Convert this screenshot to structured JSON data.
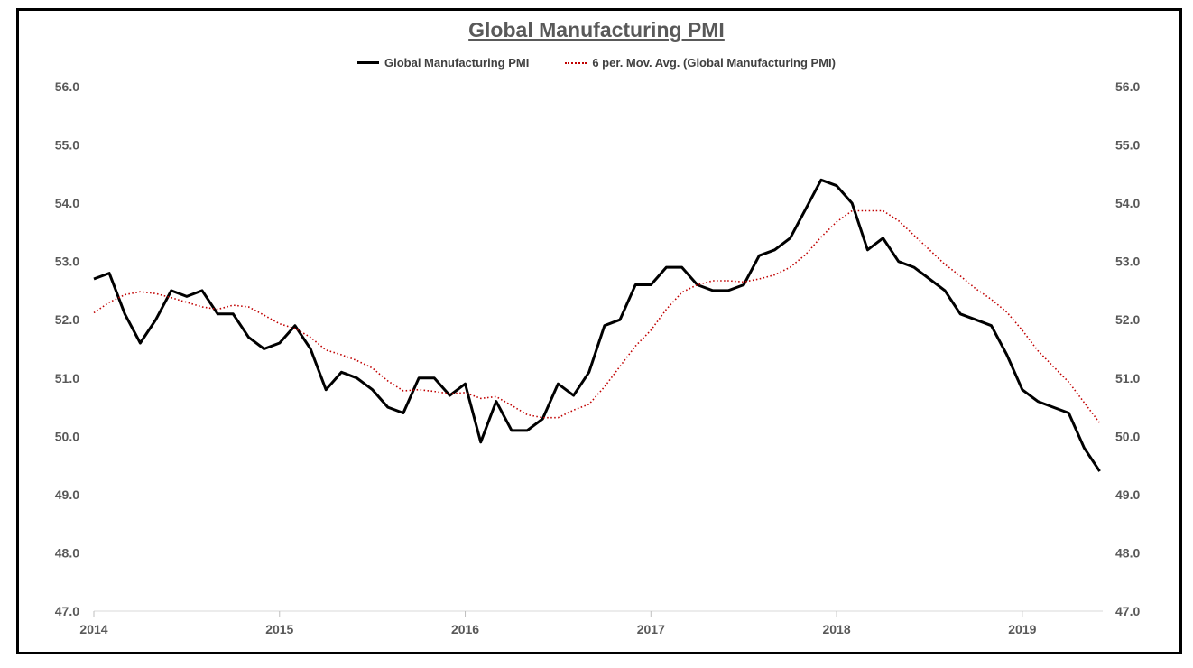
{
  "colors": {
    "pmi_line": "#000000",
    "mov_avg_line": "#c00000",
    "axis": "#595959"
  },
  "chart_data": {
    "type": "line",
    "title": "Global Manufacturing PMI",
    "legend": [
      "Global Manufacturing PMI",
      "6 per. Mov. Avg. (Global Manufacturing PMI)"
    ],
    "legend_position": "top",
    "grid": false,
    "ylim": [
      47.0,
      56.0
    ],
    "yticks": [
      "47.0",
      "48.0",
      "49.0",
      "50.0",
      "51.0",
      "52.0",
      "53.0",
      "54.0",
      "55.0",
      "56.0"
    ],
    "xticks": [
      "2014",
      "2015",
      "2016",
      "2017",
      "2018",
      "2019"
    ],
    "x_start": "2014-01",
    "series": [
      {
        "name": "Global Manufacturing PMI",
        "style": "solid",
        "values": [
          52.7,
          52.8,
          52.1,
          51.6,
          52.0,
          52.5,
          52.4,
          52.5,
          52.1,
          52.1,
          51.7,
          51.5,
          51.6,
          51.9,
          51.5,
          50.8,
          51.1,
          51.0,
          50.8,
          50.5,
          50.4,
          51.0,
          51.0,
          50.7,
          50.9,
          49.9,
          50.6,
          50.1,
          50.1,
          50.3,
          50.9,
          50.7,
          51.1,
          51.9,
          52.0,
          52.6,
          52.6,
          52.9,
          52.9,
          52.6,
          52.5,
          52.5,
          52.6,
          53.1,
          53.2,
          53.4,
          53.9,
          54.4,
          54.3,
          54.0,
          53.2,
          53.4,
          53.0,
          52.9,
          52.7,
          52.5,
          52.1,
          52.0,
          51.9,
          51.4,
          50.8,
          50.6,
          50.5,
          50.4,
          49.8,
          49.4
        ]
      },
      {
        "name": "6 per. Mov. Avg. (Global Manufacturing PMI)",
        "style": "dotted",
        "values": [
          52.12,
          52.3,
          52.43,
          52.48,
          52.45,
          52.38,
          52.3,
          52.22,
          52.18,
          52.25,
          52.22,
          52.08,
          51.93,
          51.85,
          51.7,
          51.48,
          51.4,
          51.3,
          51.17,
          50.95,
          50.78,
          50.8,
          50.77,
          50.73,
          50.75,
          50.65,
          50.68,
          50.53,
          50.37,
          50.32,
          50.32,
          50.45,
          50.55,
          50.85,
          51.2,
          51.55,
          51.82,
          52.18,
          52.47,
          52.6,
          52.67,
          52.67,
          52.65,
          52.7,
          52.77,
          52.9,
          53.12,
          53.42,
          53.68,
          53.87,
          53.87,
          53.87,
          53.7,
          53.45,
          53.2,
          52.95,
          52.75,
          52.53,
          52.35,
          52.13,
          51.82,
          51.47,
          51.2,
          50.93,
          50.58,
          50.23
        ]
      }
    ]
  }
}
